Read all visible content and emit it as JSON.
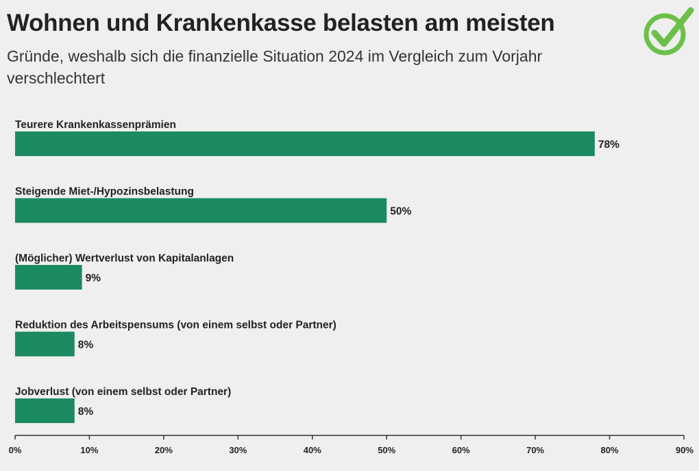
{
  "header": {
    "title": "Wohnen und Krankenkasse belasten am meisten",
    "subtitle": "Gründe, weshalb sich die finanzielle Situation 2024 im Vergleich zum Vorjahr verschlechtert"
  },
  "logo": {
    "icon": "checkmark-circle-icon",
    "color": "#6cc04a"
  },
  "chart_data": {
    "type": "bar",
    "orientation": "horizontal",
    "title": "Wohnen und Krankenkasse belasten am meisten",
    "subtitle": "Gründe, weshalb sich die finanzielle Situation 2024 im Vergleich zum Vorjahr verschlechtert",
    "categories": [
      "Teurere Krankenkassenprämien",
      "Steigende Miet-/Hypozinsbelastung",
      "(Möglicher) Wertverlust von Kapitalanlagen",
      "Reduktion des Arbeitspensums (von einem selbst oder Partner)",
      "Jobverlust (von einem selbst oder Partner)"
    ],
    "values": [
      78,
      50,
      9,
      8,
      8
    ],
    "value_labels": [
      "78%",
      "50%",
      "9%",
      "8%",
      "8%"
    ],
    "xlim": [
      0,
      90
    ],
    "ticks": [
      0,
      10,
      20,
      30,
      40,
      50,
      60,
      70,
      80,
      90
    ],
    "tick_labels": [
      "0%",
      "10%",
      "20%",
      "30%",
      "40%",
      "50%",
      "60%",
      "70%",
      "80%",
      "90%"
    ],
    "xlabel": "",
    "ylabel": "",
    "bar_color": "#1b8a60",
    "axis_color": "#333333"
  }
}
